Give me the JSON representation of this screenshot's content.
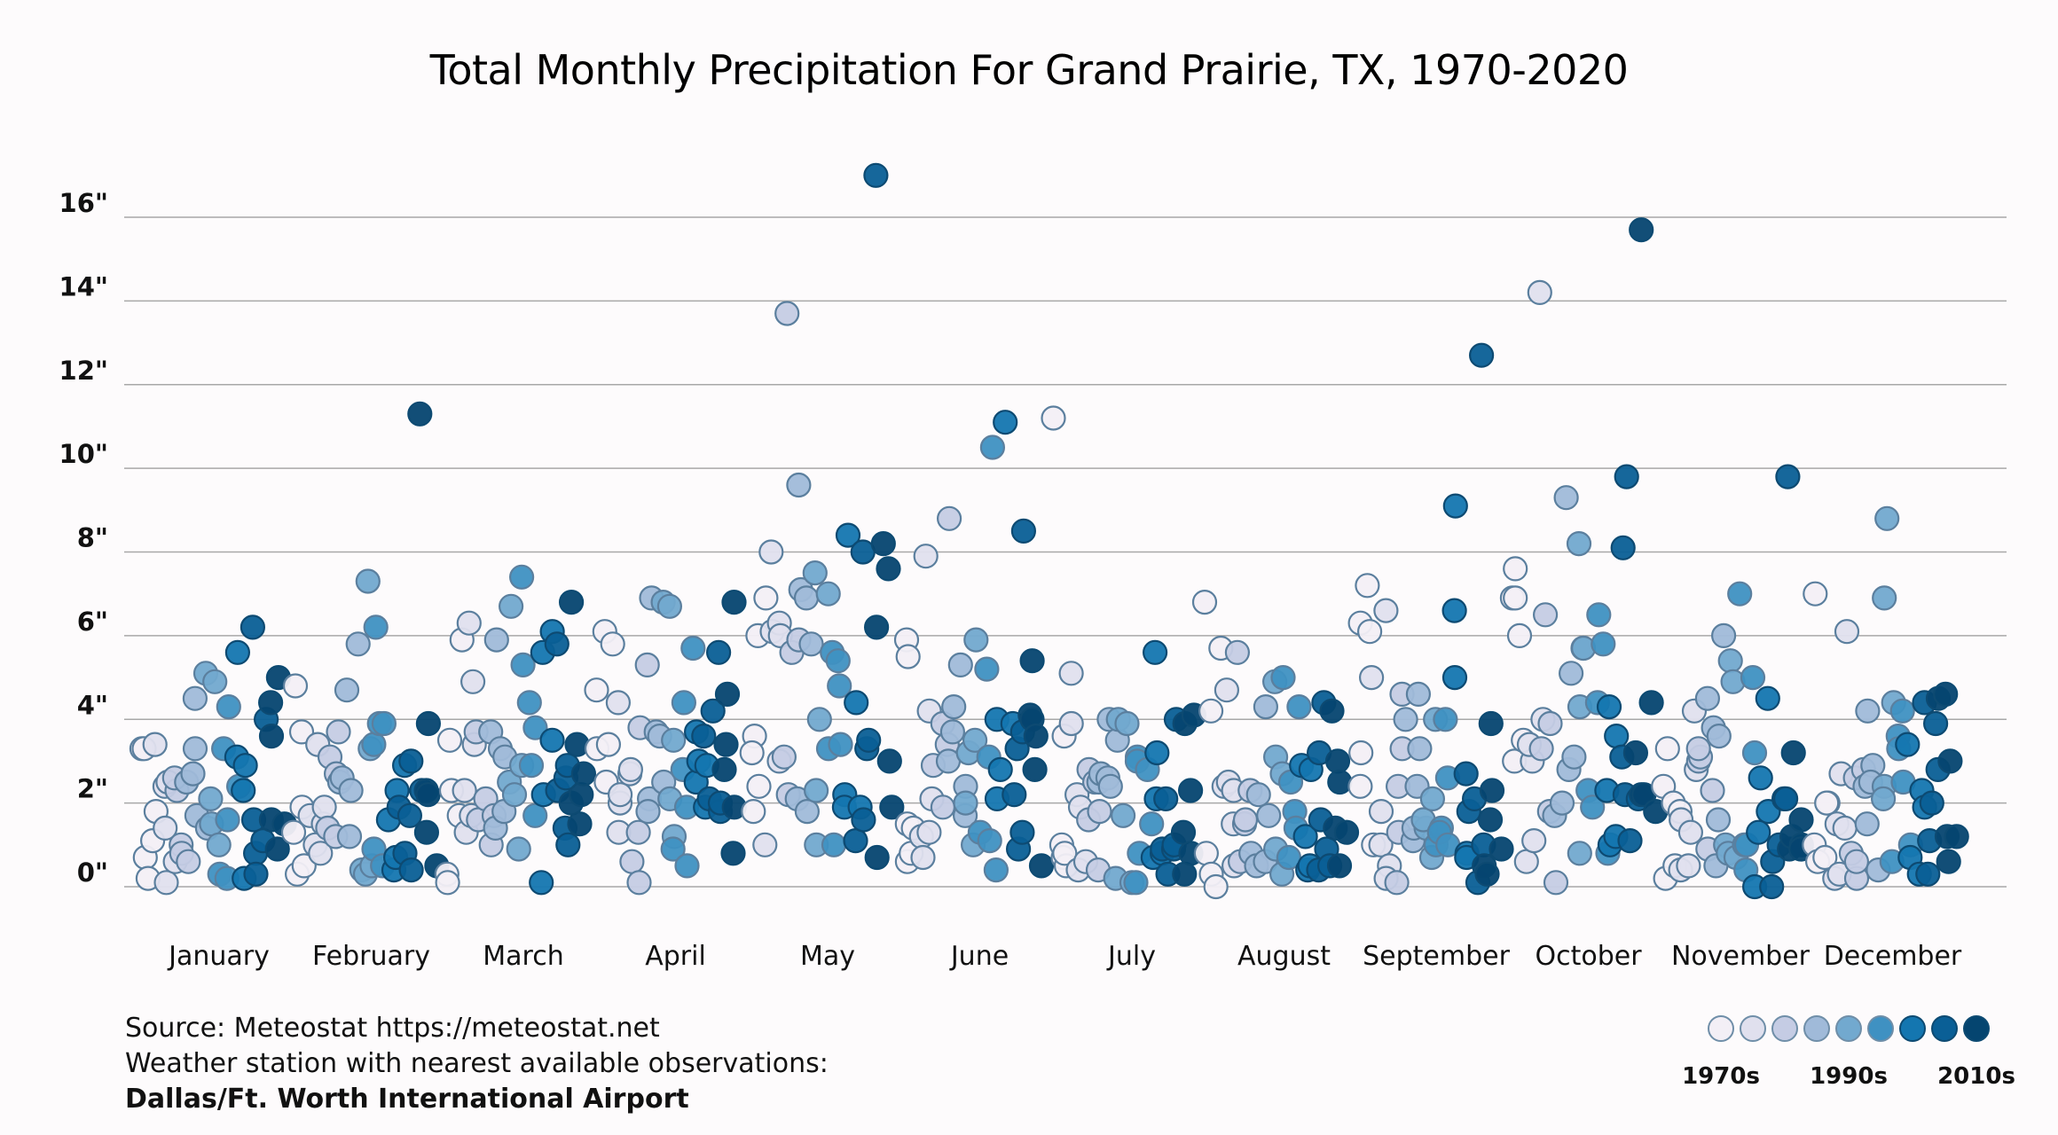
{
  "chart_data": {
    "type": "scatter",
    "title": "Total Monthly Precipitation For Grand Prairie, TX, 1970-2020",
    "xlabel": "",
    "ylabel": "",
    "ylim": [
      0,
      16
    ],
    "yticks": [
      0,
      2,
      4,
      6,
      8,
      10,
      12,
      14,
      16
    ],
    "ytick_labels": [
      "0\"",
      "2\"",
      "4\"",
      "6\"",
      "8\"",
      "10\"",
      "12\"",
      "14\"",
      "16\""
    ],
    "grid": true,
    "categories": [
      "January",
      "February",
      "March",
      "April",
      "May",
      "June",
      "July",
      "August",
      "September",
      "October",
      "November",
      "December"
    ],
    "years": [
      1970,
      2020
    ],
    "legend": {
      "placement": "bottom-right",
      "colors": [
        "#f3eff6",
        "#e0e0ee",
        "#c5cce4",
        "#a0bad9",
        "#72a9cf",
        "#3f91c2",
        "#1476b0",
        "#0a5f96",
        "#054570"
      ],
      "labels": [
        "1970s",
        "1990s",
        "2010s"
      ]
    },
    "series": [
      {
        "name": "January",
        "values": [
          3.3,
          0.7,
          3.3,
          0.2,
          1.1,
          1.8,
          3.4,
          2.4,
          1.4,
          0.1,
          2.5,
          0.6,
          2.3,
          2.6,
          1.0,
          0.8,
          0.6,
          2.5,
          2.7,
          4.5,
          3.3,
          1.7,
          1.4,
          2.1,
          5.1,
          1.5,
          1.0,
          4.9,
          0.3,
          3.3,
          1.6,
          0.2,
          4.3,
          2.4,
          3.1,
          5.6,
          2.3,
          0.2,
          2.9,
          1.6,
          6.2,
          0.8,
          0.3,
          4.0,
          1.1,
          3.6,
          4.4,
          1.6,
          0.9,
          5.0,
          1.5
        ]
      },
      {
        "name": "February",
        "values": [
          4.8,
          1.3,
          0.3,
          1.9,
          3.7,
          0.5,
          1.7,
          1.0,
          3.4,
          1.5,
          0.8,
          1.9,
          1.4,
          3.1,
          2.7,
          1.2,
          3.7,
          2.5,
          2.6,
          1.2,
          4.7,
          2.3,
          5.8,
          0.4,
          0.3,
          7.3,
          3.3,
          0.5,
          3.4,
          6.2,
          0.9,
          3.9,
          0.5,
          3.9,
          1.6,
          0.4,
          2.3,
          0.7,
          2.9,
          1.9,
          0.8,
          1.7,
          0.4,
          3.0,
          2.3,
          11.3,
          2.3,
          1.3,
          3.9,
          2.2,
          0.5
        ]
      },
      {
        "name": "March",
        "values": [
          3.5,
          0.3,
          0.1,
          2.3,
          1.7,
          5.9,
          2.3,
          6.3,
          1.3,
          3.4,
          1.7,
          4.9,
          3.7,
          1.6,
          2.1,
          1.0,
          1.7,
          3.7,
          5.9,
          1.4,
          3.3,
          3.1,
          1.8,
          2.5,
          6.7,
          2.2,
          2.9,
          0.9,
          7.4,
          5.3,
          2.9,
          4.4,
          1.7,
          3.8,
          0.1,
          2.2,
          5.6,
          3.5,
          6.1,
          2.3,
          5.8,
          1.4,
          2.6,
          1.0,
          2.9,
          2.0,
          6.8,
          2.2,
          3.4,
          1.5,
          2.7
        ]
      },
      {
        "name": "April",
        "values": [
          4.7,
          3.3,
          6.1,
          2.5,
          3.4,
          5.8,
          1.3,
          4.4,
          2.0,
          2.2,
          2.7,
          2.8,
          0.6,
          1.3,
          0.1,
          3.8,
          5.3,
          2.1,
          1.8,
          6.9,
          3.7,
          3.6,
          2.5,
          6.8,
          2.1,
          6.7,
          1.2,
          3.5,
          0.9,
          4.4,
          2.8,
          1.9,
          0.5,
          5.7,
          2.5,
          3.7,
          3.0,
          1.9,
          2.9,
          3.6,
          2.1,
          4.2,
          1.8,
          2.0,
          5.6,
          3.4,
          2.8,
          4.6,
          0.8,
          6.8,
          1.9
        ]
      },
      {
        "name": "May",
        "values": [
          3.6,
          1.8,
          3.2,
          6.0,
          2.4,
          6.9,
          1.0,
          6.1,
          8.0,
          3.0,
          6.3,
          6.0,
          13.7,
          3.1,
          2.2,
          5.6,
          5.9,
          9.6,
          2.1,
          7.1,
          6.9,
          1.8,
          5.8,
          7.5,
          2.3,
          1.0,
          4.0,
          7.0,
          3.3,
          5.6,
          5.4,
          1.0,
          4.8,
          3.4,
          2.2,
          1.9,
          8.4,
          4.4,
          1.9,
          1.1,
          8.0,
          1.6,
          3.3,
          3.5,
          17.0,
          6.2,
          0.7,
          8.2,
          7.6,
          1.9,
          3.0
        ]
      },
      {
        "name": "June",
        "values": [
          5.9,
          5.5,
          0.6,
          1.5,
          0.8,
          1.4,
          1.2,
          0.7,
          1.3,
          7.9,
          4.2,
          2.1,
          2.9,
          3.9,
          1.9,
          3.4,
          8.8,
          3.0,
          4.3,
          3.7,
          5.3,
          2.4,
          1.7,
          2.0,
          3.2,
          1.0,
          5.9,
          3.5,
          1.3,
          5.2,
          3.1,
          1.1,
          10.5,
          0.4,
          4.0,
          2.1,
          2.8,
          11.1,
          3.9,
          2.2,
          0.9,
          3.3,
          8.5,
          3.7,
          1.3,
          5.4,
          4.1,
          4.0,
          2.8,
          3.6,
          0.5
        ]
      },
      {
        "name": "July",
        "values": [
          11.2,
          1.0,
          0.7,
          3.6,
          0.5,
          0.8,
          5.1,
          3.9,
          2.2,
          0.4,
          1.9,
          0.6,
          2.8,
          1.6,
          2.5,
          0.4,
          1.8,
          2.5,
          2.7,
          2.6,
          2.4,
          4.0,
          3.5,
          0.2,
          4.0,
          1.7,
          3.9,
          0.1,
          3.1,
          0.8,
          0.1,
          3.0,
          2.8,
          1.5,
          0.7,
          5.6,
          2.1,
          0.8,
          3.2,
          0.9,
          0.3,
          2.1,
          0.9,
          1.0,
          4.0,
          3.9,
          0.3,
          1.3,
          0.8,
          4.1,
          2.3
        ]
      },
      {
        "name": "August",
        "values": [
          6.8,
          0.8,
          4.2,
          0.3,
          0.0,
          5.7,
          2.4,
          4.7,
          1.5,
          2.5,
          2.3,
          0.5,
          5.6,
          0.6,
          1.5,
          1.6,
          2.3,
          0.8,
          0.5,
          2.2,
          4.3,
          0.6,
          1.7,
          4.9,
          0.9,
          3.1,
          0.3,
          2.7,
          5.0,
          2.5,
          0.7,
          1.8,
          1.4,
          4.3,
          1.2,
          2.9,
          0.4,
          0.5,
          2.8,
          0.4,
          1.6,
          3.2,
          0.9,
          4.4,
          0.5,
          1.4,
          4.2,
          3.0,
          0.5,
          2.5,
          1.3
        ]
      },
      {
        "name": "September",
        "values": [
          3.2,
          2.4,
          6.3,
          7.2,
          6.1,
          1.0,
          5.0,
          1.8,
          1.0,
          6.6,
          0.5,
          0.2,
          0.1,
          2.4,
          4.6,
          1.3,
          3.3,
          4.0,
          1.1,
          1.4,
          4.6,
          2.4,
          3.3,
          1.4,
          1.6,
          0.7,
          2.1,
          4.0,
          1.0,
          1.4,
          1.3,
          4.0,
          2.6,
          1.0,
          6.6,
          5.0,
          9.1,
          0.8,
          0.7,
          2.7,
          1.8,
          0.1,
          2.1,
          12.7,
          1.0,
          0.5,
          3.9,
          0.3,
          1.6,
          2.3,
          0.9
        ]
      },
      {
        "name": "October",
        "values": [
          3.0,
          7.6,
          6.9,
          6.9,
          6.0,
          3.5,
          3.0,
          0.6,
          3.4,
          1.1,
          14.2,
          4.0,
          3.3,
          6.5,
          3.9,
          1.8,
          0.1,
          1.7,
          2.0,
          9.3,
          2.8,
          3.1,
          5.1,
          8.2,
          4.3,
          5.7,
          0.8,
          5.7,
          2.3,
          1.9,
          4.4,
          6.5,
          5.8,
          0.8,
          1.0,
          2.3,
          4.3,
          3.6,
          1.2,
          8.1,
          3.1,
          2.2,
          9.8,
          1.1,
          2.1,
          2.2,
          3.2,
          15.7,
          2.2,
          4.4,
          1.8
        ]
      },
      {
        "name": "November",
        "values": [
          0.2,
          2.4,
          3.3,
          2.0,
          0.5,
          1.8,
          0.4,
          1.6,
          0.5,
          1.3,
          4.2,
          2.8,
          3.0,
          3.1,
          3.3,
          0.9,
          2.3,
          4.5,
          3.8,
          0.5,
          1.6,
          3.6,
          6.0,
          1.0,
          0.8,
          5.4,
          4.9,
          0.7,
          7.0,
          1.0,
          0.4,
          1.0,
          3.2,
          5.0,
          0.0,
          1.3,
          2.6,
          4.5,
          1.8,
          0.6,
          0.0,
          1.0,
          2.1,
          9.8,
          2.1,
          0.9,
          3.2,
          1.2,
          1.0,
          0.9,
          1.6
        ]
      },
      {
        "name": "December",
        "values": [
          7.0,
          1.0,
          0.6,
          0.7,
          2.0,
          2.0,
          0.2,
          1.5,
          2.7,
          0.3,
          1.4,
          6.1,
          0.8,
          2.6,
          0.2,
          0.6,
          2.8,
          2.4,
          4.2,
          2.9,
          1.5,
          2.5,
          0.4,
          2.4,
          8.8,
          2.1,
          6.9,
          4.4,
          0.6,
          3.6,
          2.5,
          3.3,
          4.2,
          1.0,
          3.4,
          0.7,
          0.3,
          2.3,
          1.9,
          4.4,
          0.3,
          2.0,
          1.1,
          2.8,
          3.9,
          4.5,
          1.2,
          0.6,
          4.6,
          3.0,
          1.2
        ]
      }
    ]
  },
  "notes": {
    "source": "Source: Meteostat https://meteostat.net",
    "station_label": "Weather station with nearest available observations:",
    "station_name": "Dallas/Ft. Worth International Airport"
  }
}
